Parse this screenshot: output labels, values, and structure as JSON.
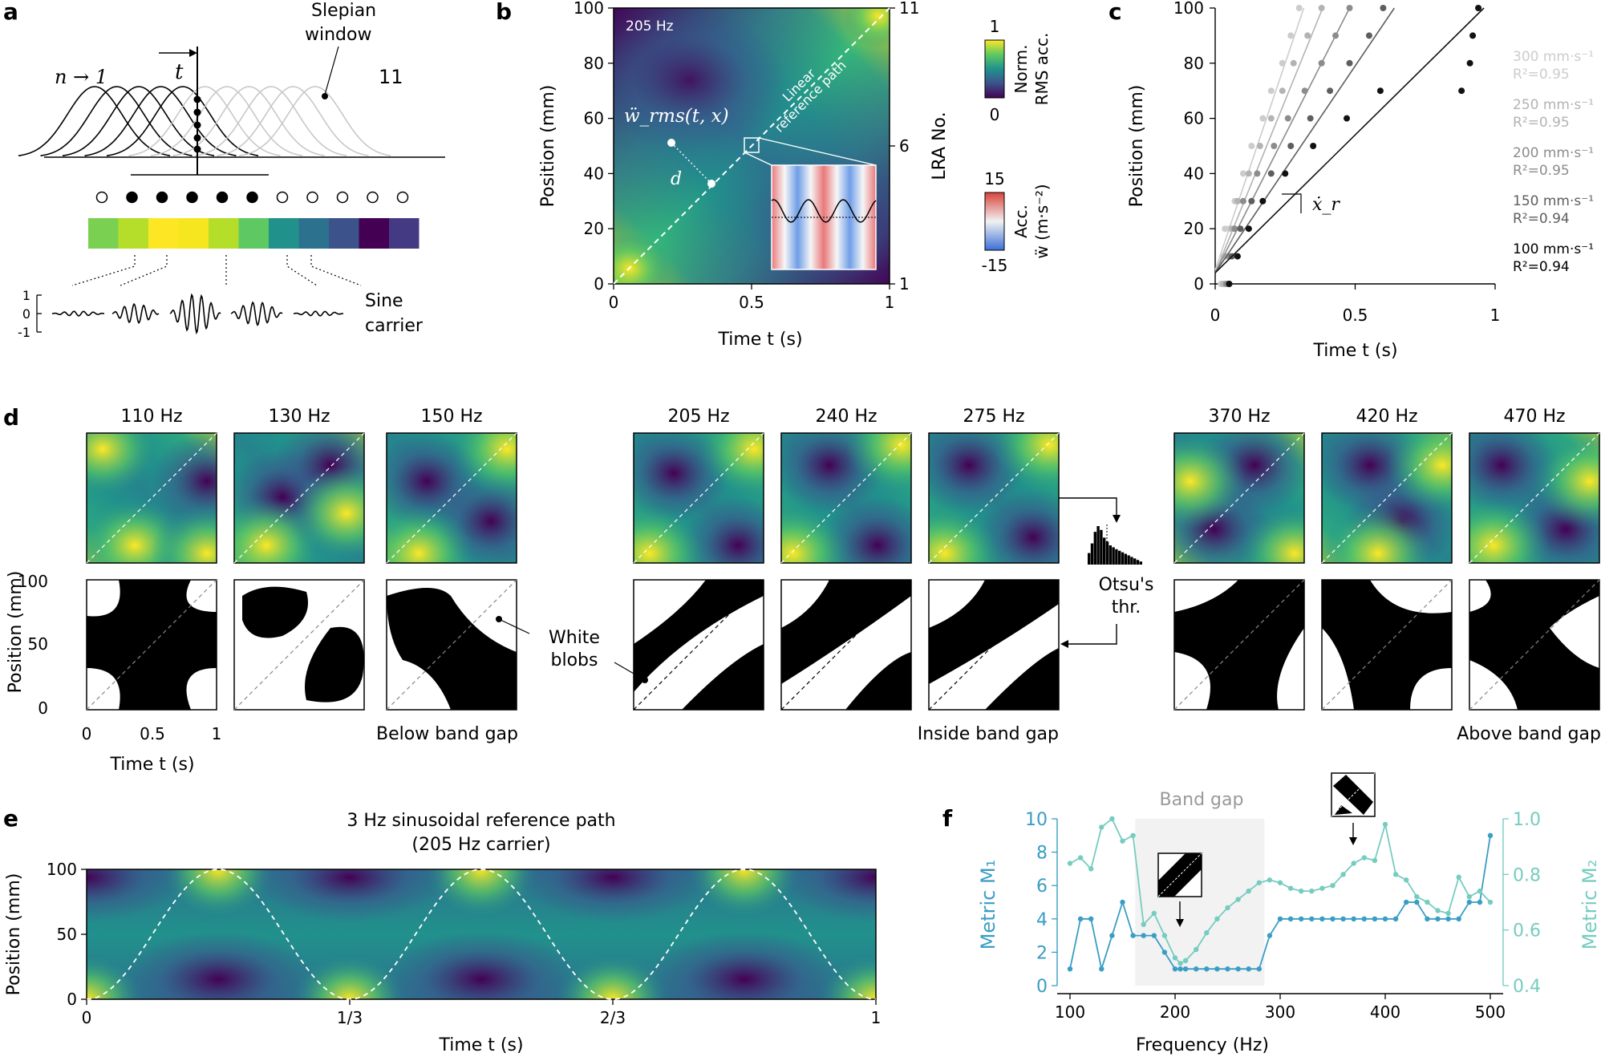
{
  "panel_labels": {
    "a": "a",
    "b": "b",
    "c": "c",
    "d": "d",
    "e": "e",
    "f": "f"
  },
  "panel_a": {
    "window_label_1": "Slepian",
    "window_label_2": "window",
    "n_label": "n → 1",
    "end_label": "11",
    "t_label": "t",
    "sine_label_1": "Sine",
    "sine_label_2": "carrier",
    "amp_ticks": [
      "1",
      "0",
      "-1"
    ],
    "filled_dots": [
      false,
      true,
      true,
      true,
      true,
      true,
      false,
      false,
      false,
      false,
      false
    ],
    "color_strip": [
      "#7ad151",
      "#b5de2b",
      "#fde725",
      "#f6e620",
      "#b5de2b",
      "#5ec962",
      "#21918c",
      "#2c728e",
      "#3b528b",
      "#440154",
      "#443983"
    ]
  },
  "panel_b": {
    "freq": "205 Hz",
    "xlabel": "Time t (s)",
    "ylabel": "Position (mm)",
    "right_label": "LRA No.",
    "xticks": [
      "0",
      "0.5",
      "1"
    ],
    "yticks": [
      "0",
      "20",
      "40",
      "60",
      "80",
      "100"
    ],
    "right_ticks": [
      "1",
      "6",
      "11"
    ],
    "path_label_1": "Linear",
    "path_label_2": "reference path",
    "w_label": "ẅ_rms(t, x)",
    "d_label": "d",
    "cbar1_top": "1",
    "cbar1_bottom": "0",
    "cbar1_title_1": "Norm.",
    "cbar1_title_2": "RMS acc.",
    "cbar2_top": "15",
    "cbar2_bottom": "-15",
    "cbar2_title_1": "Acc.",
    "cbar2_title_2": "ẅ (m·s⁻²)"
  },
  "chart_data": [
    {
      "id": "panel_c",
      "type": "scatter",
      "title": "",
      "xlabel": "Time t (s)",
      "ylabel": "Position (mm)",
      "xlim": [
        0,
        1
      ],
      "ylim": [
        0,
        100
      ],
      "xticks": [
        "0",
        "0.5",
        "1"
      ],
      "yticks": [
        "0",
        "20",
        "40",
        "60",
        "80",
        "100"
      ],
      "slope_label": "ẋ_r",
      "series": [
        {
          "name": "300 mm·s⁻¹",
          "r2": "R²=0.95",
          "color": "#cccccc",
          "slope": 300,
          "intercept": 5,
          "x": [
            0.02,
            0.03,
            0.035,
            0.05,
            0.07,
            0.1,
            0.13,
            0.17,
            0.2,
            0.24,
            0.27,
            0.3
          ],
          "y": [
            0,
            10,
            20,
            20,
            30,
            40,
            50,
            60,
            70,
            80,
            90,
            100
          ]
        },
        {
          "name": "250 mm·s⁻¹",
          "r2": "R²=0.95",
          "color": "#b3b3b3",
          "slope": 250,
          "intercept": 4,
          "x": [
            0.03,
            0.04,
            0.06,
            0.08,
            0.12,
            0.16,
            0.2,
            0.24,
            0.28,
            0.33,
            0.38
          ],
          "y": [
            0,
            10,
            20,
            30,
            40,
            50,
            60,
            70,
            80,
            90,
            100
          ]
        },
        {
          "name": "200 mm·s⁻¹",
          "r2": "R²=0.95",
          "color": "#8c8c8c",
          "slope": 200,
          "intercept": 4,
          "x": [
            0.04,
            0.05,
            0.07,
            0.1,
            0.15,
            0.21,
            0.26,
            0.32,
            0.38,
            0.43,
            0.48
          ],
          "y": [
            0,
            10,
            20,
            30,
            40,
            50,
            60,
            70,
            80,
            90,
            100
          ]
        },
        {
          "name": "150 mm·s⁻¹",
          "r2": "R²=0.94",
          "color": "#5e5e5e",
          "slope": 150,
          "intercept": 4,
          "x": [
            0.05,
            0.06,
            0.09,
            0.13,
            0.2,
            0.27,
            0.34,
            0.41,
            0.48,
            0.55,
            0.6
          ],
          "y": [
            0,
            10,
            20,
            30,
            40,
            50,
            60,
            70,
            80,
            90,
            100
          ]
        },
        {
          "name": "100 mm·s⁻¹",
          "r2": "R²=0.94",
          "color": "#111111",
          "slope": 100,
          "intercept": 4,
          "x": [
            0.05,
            0.08,
            0.12,
            0.17,
            0.25,
            0.35,
            0.47,
            0.59,
            0.88,
            0.91,
            0.92,
            0.94
          ],
          "y": [
            0,
            10,
            20,
            30,
            40,
            50,
            60,
            70,
            70,
            80,
            90,
            100
          ]
        }
      ]
    },
    {
      "id": "panel_f",
      "type": "line",
      "title": "",
      "xlabel": "Frequency (Hz)",
      "ylabel_left": "Metric M₁",
      "ylabel_right": "Metric M₂",
      "xlim": [
        100,
        500
      ],
      "ylim_left": [
        0,
        10
      ],
      "ylim_right": [
        0.4,
        1.0
      ],
      "xticks": [
        "100",
        "200",
        "300",
        "400",
        "500"
      ],
      "yticks_left": [
        "0",
        "2",
        "4",
        "6",
        "8",
        "10"
      ],
      "yticks_right": [
        "0.4",
        "0.6",
        "0.8",
        "1.0"
      ],
      "band_gap": [
        162,
        285
      ],
      "band_gap_label": "Band gap",
      "series": [
        {
          "name": "M1",
          "color": "#3a9dc4",
          "x": [
            100,
            110,
            120,
            130,
            140,
            150,
            160,
            170,
            180,
            190,
            200,
            205,
            210,
            220,
            230,
            240,
            250,
            260,
            270,
            280,
            290,
            300,
            310,
            320,
            330,
            340,
            350,
            360,
            370,
            380,
            390,
            400,
            410,
            420,
            430,
            440,
            450,
            460,
            470,
            480,
            490,
            500
          ],
          "y": [
            1,
            4,
            4,
            1,
            3,
            5,
            3,
            3,
            3,
            2,
            1,
            1,
            1,
            1,
            1,
            1,
            1,
            1,
            1,
            1,
            3,
            4,
            4,
            4,
            4,
            4,
            4,
            4,
            4,
            4,
            4,
            4,
            4,
            5,
            5,
            4,
            4,
            4,
            4,
            5,
            5,
            9
          ]
        },
        {
          "name": "M2",
          "color": "#76ccc0",
          "x": [
            100,
            110,
            120,
            130,
            140,
            150,
            160,
            170,
            180,
            190,
            200,
            205,
            210,
            220,
            230,
            240,
            250,
            260,
            270,
            280,
            290,
            300,
            310,
            320,
            330,
            340,
            350,
            360,
            370,
            380,
            390,
            400,
            410,
            420,
            430,
            440,
            450,
            460,
            470,
            480,
            490,
            500
          ],
          "y": [
            0.84,
            0.86,
            0.82,
            0.97,
            1.0,
            0.92,
            0.94,
            0.62,
            0.66,
            0.58,
            0.5,
            0.48,
            0.49,
            0.53,
            0.59,
            0.64,
            0.68,
            0.71,
            0.74,
            0.77,
            0.78,
            0.77,
            0.75,
            0.74,
            0.74,
            0.75,
            0.76,
            0.8,
            0.84,
            0.86,
            0.85,
            0.98,
            0.8,
            0.78,
            0.72,
            0.7,
            0.67,
            0.66,
            0.79,
            0.72,
            0.74,
            0.7
          ]
        }
      ]
    }
  ],
  "panel_d": {
    "freqs": [
      "110 Hz",
      "130 Hz",
      "150 Hz",
      "205 Hz",
      "240 Hz",
      "275 Hz",
      "370 Hz",
      "420 Hz",
      "470 Hz"
    ],
    "ylabel": "Position (mm)",
    "xlabel": "Time t (s)",
    "yticks": [
      "0",
      "50",
      "100"
    ],
    "xticks": [
      "0",
      "0.5",
      "1"
    ],
    "group_labels": [
      "Below band gap",
      "Inside band gap",
      "Above band gap"
    ],
    "white_blobs_1": "White",
    "white_blobs_2": "blobs",
    "otsu_1": "Otsu's",
    "otsu_2": "thr."
  },
  "panel_e": {
    "title_1": "3 Hz sinusoidal reference path",
    "title_2": "(205 Hz carrier)",
    "ylabel": "Position (mm)",
    "xlabel": "Time t (s)",
    "yticks": [
      "0",
      "50",
      "100"
    ],
    "xticks": [
      "0",
      "1/3",
      "2/3",
      "1"
    ]
  }
}
